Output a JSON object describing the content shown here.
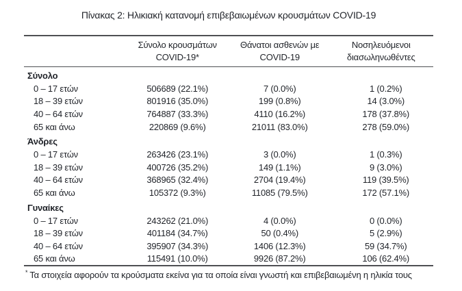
{
  "title": "Πίνακας 2: Ηλικιακή κατανομή επιβεβαιωμένων κρουσμάτων COVID-19",
  "table": {
    "columns": [
      {
        "line1": "Σύνολο κρουσμάτων",
        "line2": "COVID-19*"
      },
      {
        "line1": "Θάνατοι ασθενών με",
        "line2": "COVID-19"
      },
      {
        "line1": "Νοσηλευόμενοι",
        "line2": "διασωληνωθέντες"
      }
    ],
    "sections": [
      {
        "name": "Σύνολο",
        "rows": [
          {
            "label": "0 – 17 ετών",
            "cases": "506689 (22.1%)",
            "deaths": "7 (0.0%)",
            "intubated": "1 (0.2%)"
          },
          {
            "label": "18 – 39 ετών",
            "cases": "801916 (35.0%)",
            "deaths": "199 (0.8%)",
            "intubated": "14 (3.0%)"
          },
          {
            "label": "40 – 64 ετών",
            "cases": "764887 (33.3%)",
            "deaths": "4110 (16.2%)",
            "intubated": "178 (37.8%)"
          },
          {
            "label": "65 και άνω",
            "cases": "220869 (9.6%)",
            "deaths": "21011 (83.0%)",
            "intubated": "278 (59.0%)"
          }
        ]
      },
      {
        "name": "Άνδρες",
        "rows": [
          {
            "label": "0 – 17 ετών",
            "cases": "263426 (23.1%)",
            "deaths": "3 (0.0%)",
            "intubated": "1 (0.3%)"
          },
          {
            "label": "18 – 39 ετών",
            "cases": "400726 (35.2%)",
            "deaths": "149 (1.1%)",
            "intubated": "9 (3.0%)"
          },
          {
            "label": "40 – 64 ετών",
            "cases": "368965 (32.4%)",
            "deaths": "2704 (19.4%)",
            "intubated": "119 (39.5%)"
          },
          {
            "label": "65 και άνω",
            "cases": "105372 (9.3%)",
            "deaths": "11085 (79.5%)",
            "intubated": "172 (57.1%)"
          }
        ]
      },
      {
        "name": "Γυναίκες",
        "rows": [
          {
            "label": "0 – 17 ετών",
            "cases": "243262 (21.0%)",
            "deaths": "4 (0.0%)",
            "intubated": "0 (0.0%)"
          },
          {
            "label": "18 – 39 ετών",
            "cases": "401184 (34.7%)",
            "deaths": "50 (0.4%)",
            "intubated": "5 (2.9%)"
          },
          {
            "label": "40 – 64 ετών",
            "cases": "395907 (34.3%)",
            "deaths": "1406 (12.3%)",
            "intubated": "59 (34.7%)"
          },
          {
            "label": "65 και άνω",
            "cases": "115491 (10.0%)",
            "deaths": "9926 (87.2%)",
            "intubated": "106 (62.4%)"
          }
        ]
      }
    ]
  },
  "footnote": {
    "marker": "*",
    "text": "Τα στοιχεία αφορούν τα κρούσματα εκείνα για τα οποία είναι γνωστή και επιβεβαιωμένη η ηλικία τους"
  },
  "colors": {
    "text": "#1f2228",
    "rule": "#4e4f53",
    "background": "#ffffff"
  }
}
